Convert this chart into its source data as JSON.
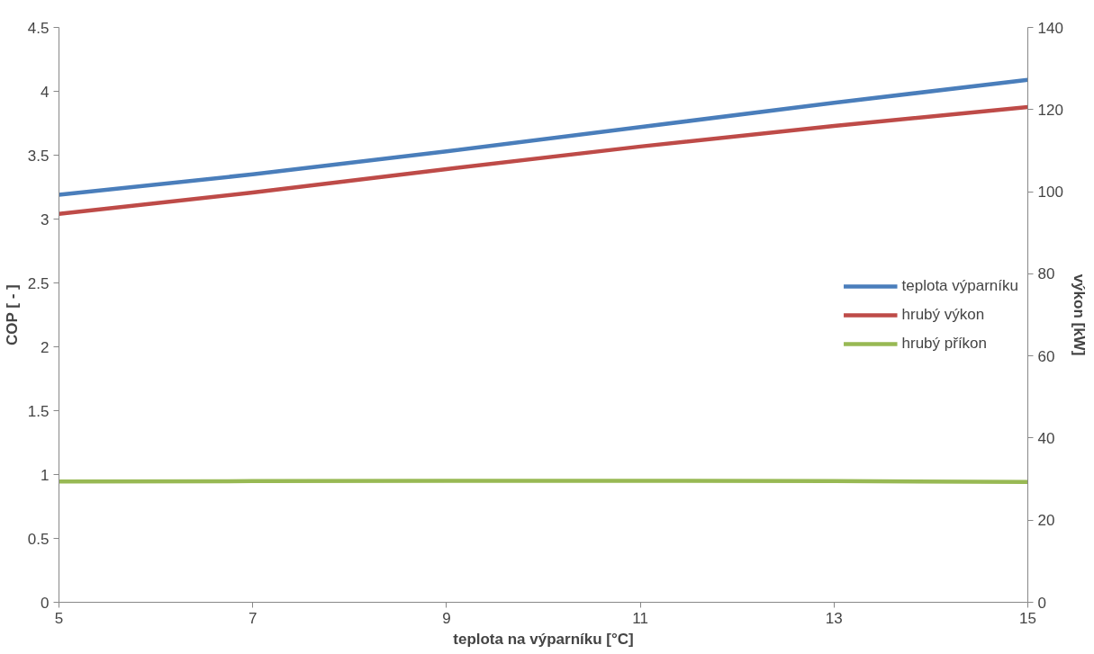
{
  "chart_data": {
    "type": "line",
    "xlabel": "teplota na výparníku [°C]",
    "ylabel": "COP [ - ]",
    "y2label": "výkon [kW]",
    "x": [
      5,
      7,
      9,
      11,
      13,
      15
    ],
    "series": [
      {
        "name": "teplota výparníku",
        "color": "#4a7ebb",
        "values": [
          3.19,
          3.35,
          3.53,
          3.72,
          3.91,
          4.09
        ]
      },
      {
        "name": "hrubý výkon",
        "color": "#be4b48",
        "axis": "y2",
        "values": [
          94.6,
          99.8,
          105.5,
          111,
          116,
          120.6
        ]
      },
      {
        "name": "hrubý příkon",
        "color": "#98b954",
        "axis": "y2",
        "values": [
          29.4,
          29.5,
          29.6,
          29.6,
          29.5,
          29.3
        ]
      }
    ],
    "xlim": [
      5,
      15
    ],
    "xticks": [
      5,
      7,
      9,
      11,
      13,
      15
    ],
    "ylim": [
      0,
      4.5
    ],
    "yticks": [
      0,
      {
        "value": 0.5,
        "label": "0.5"
      },
      1,
      {
        "value": 1.5,
        "label": "1.5"
      },
      2,
      {
        "value": 2.5,
        "label": "2.5"
      },
      3,
      {
        "value": 3.5,
        "label": "3.5"
      },
      4,
      {
        "value": 4.5,
        "label": "4.5"
      }
    ],
    "y2lim": [
      0,
      140
    ],
    "y2ticks": [
      0,
      20,
      40,
      60,
      80,
      100,
      120,
      140
    ],
    "grid": false,
    "legend": "right",
    "marker": "none",
    "line_style": "solid"
  }
}
